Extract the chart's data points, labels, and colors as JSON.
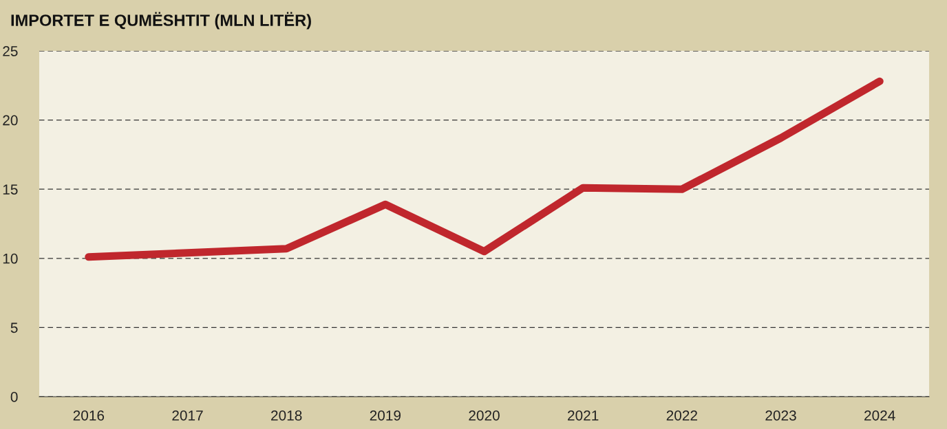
{
  "chart_data": {
    "type": "line",
    "title": "IMPORTET E QUMËSHTIT (MLN LITËR)",
    "categories": [
      "2016",
      "2017",
      "2018",
      "2019",
      "2020",
      "2021",
      "2022",
      "2023",
      "2024"
    ],
    "series": [
      {
        "color": "#c0272d",
        "values": [
          10.1,
          10.4,
          10.7,
          13.9,
          10.5,
          15.1,
          15.0,
          18.7,
          22.8
        ]
      }
    ],
    "ylim": [
      0,
      25
    ],
    "yticks": [
      0,
      5,
      10,
      15,
      20,
      25
    ],
    "grid": "y",
    "legend": false
  }
}
